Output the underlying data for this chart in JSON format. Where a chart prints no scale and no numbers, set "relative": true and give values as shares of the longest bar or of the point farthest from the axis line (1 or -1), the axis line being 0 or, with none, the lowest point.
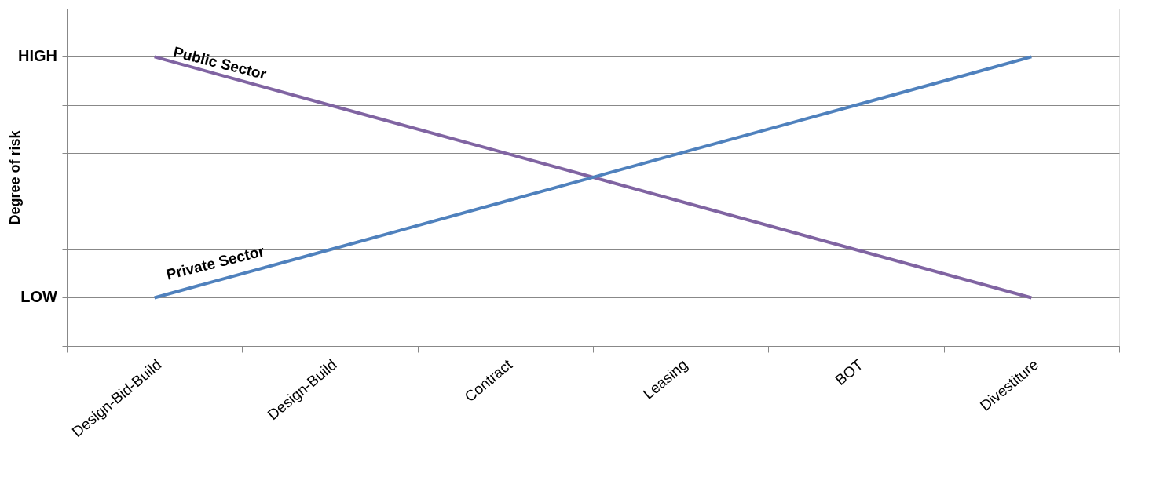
{
  "chart_data": {
    "type": "line",
    "relative": true,
    "ylabel": "Degree of risk",
    "categories": [
      "Design-Bid-Build",
      "Design-Build",
      "Contract",
      "Leasing",
      "BOT",
      "Divestiture"
    ],
    "series": [
      {
        "name": "Public Sector",
        "color": "#8064a2",
        "values": [
          1,
          0.833,
          0.667,
          0.5,
          0.333,
          0.167
        ]
      },
      {
        "name": "Private Sector",
        "color": "#4f81bd",
        "values": [
          0.167,
          0.333,
          0.5,
          0.667,
          0.833,
          1
        ]
      }
    ],
    "annotations": [
      "HIGH",
      "LOW"
    ],
    "grid": "y",
    "legend": false,
    "marker": "none",
    "line_style": "solid"
  }
}
